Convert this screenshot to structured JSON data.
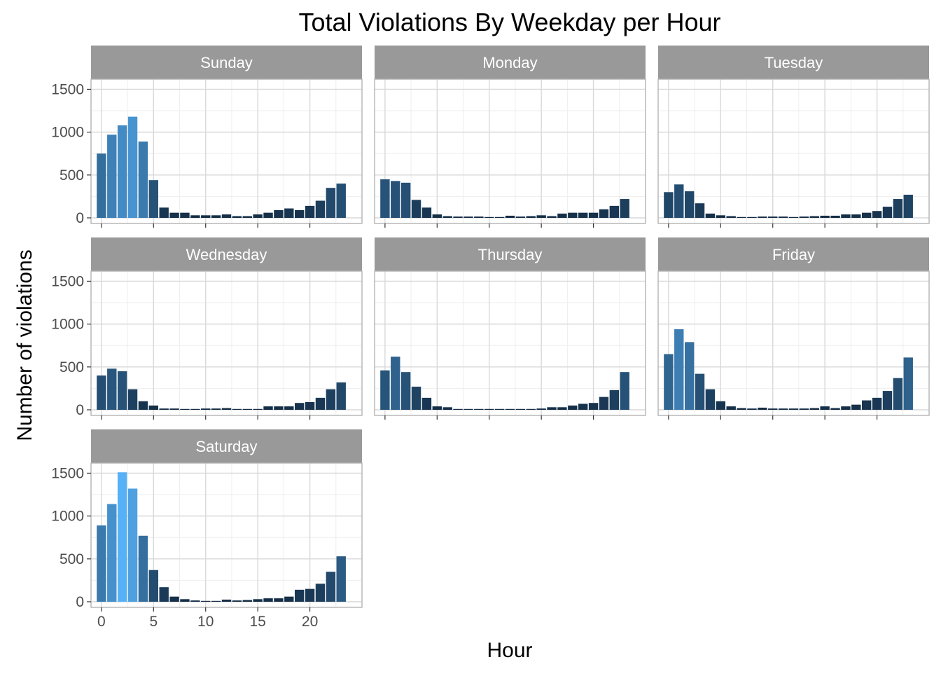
{
  "chart_data": {
    "type": "bar",
    "title": "Total Violations By Weekday per Hour",
    "xlabel": "Hour",
    "ylabel": "Number of violations",
    "x": [
      0,
      1,
      2,
      3,
      4,
      5,
      6,
      7,
      8,
      9,
      10,
      11,
      12,
      13,
      14,
      15,
      16,
      17,
      18,
      19,
      20,
      21,
      22,
      23
    ],
    "x_ticks": [
      0,
      5,
      10,
      15,
      20
    ],
    "y_ticks": [
      0,
      500,
      1000,
      1500
    ],
    "ylim": [
      0,
      1520
    ],
    "xlim": [
      -1,
      25
    ],
    "grid": true,
    "legend": "none",
    "fill_scale": {
      "low": "#132B43",
      "high": "#56B1F7",
      "min_value": 0,
      "max_value": 1510
    },
    "panel_fill": "#ffffff",
    "strip_fill": "#999999",
    "grid_color": "#d9d9d9",
    "panels": [
      {
        "name": "Sunday",
        "values": [
          750,
          970,
          1080,
          1180,
          890,
          440,
          120,
          60,
          60,
          30,
          30,
          30,
          40,
          20,
          20,
          40,
          60,
          90,
          110,
          90,
          140,
          200,
          350,
          400
        ]
      },
      {
        "name": "Monday",
        "values": [
          450,
          430,
          410,
          210,
          120,
          40,
          20,
          15,
          15,
          15,
          10,
          10,
          25,
          15,
          20,
          30,
          20,
          50,
          60,
          60,
          60,
          100,
          140,
          220
        ]
      },
      {
        "name": "Tuesday",
        "values": [
          300,
          390,
          310,
          170,
          50,
          30,
          20,
          10,
          10,
          15,
          15,
          15,
          10,
          15,
          20,
          25,
          25,
          40,
          40,
          60,
          80,
          130,
          220,
          270
        ]
      },
      {
        "name": "Wednesday",
        "values": [
          400,
          480,
          450,
          240,
          100,
          50,
          15,
          15,
          10,
          10,
          15,
          15,
          20,
          10,
          10,
          10,
          40,
          40,
          40,
          80,
          90,
          140,
          240,
          320
        ]
      },
      {
        "name": "Thursday",
        "values": [
          460,
          620,
          440,
          270,
          140,
          40,
          30,
          10,
          10,
          10,
          10,
          10,
          10,
          10,
          10,
          15,
          30,
          30,
          50,
          70,
          80,
          150,
          230,
          440
        ]
      },
      {
        "name": "Friday",
        "values": [
          650,
          940,
          790,
          420,
          240,
          100,
          40,
          20,
          15,
          25,
          15,
          15,
          15,
          15,
          20,
          40,
          20,
          40,
          60,
          110,
          140,
          220,
          370,
          610
        ]
      },
      {
        "name": "Saturday",
        "values": [
          890,
          1140,
          1510,
          1320,
          770,
          370,
          170,
          60,
          30,
          15,
          10,
          10,
          25,
          15,
          20,
          30,
          40,
          40,
          60,
          140,
          150,
          210,
          350,
          530
        ]
      }
    ]
  }
}
